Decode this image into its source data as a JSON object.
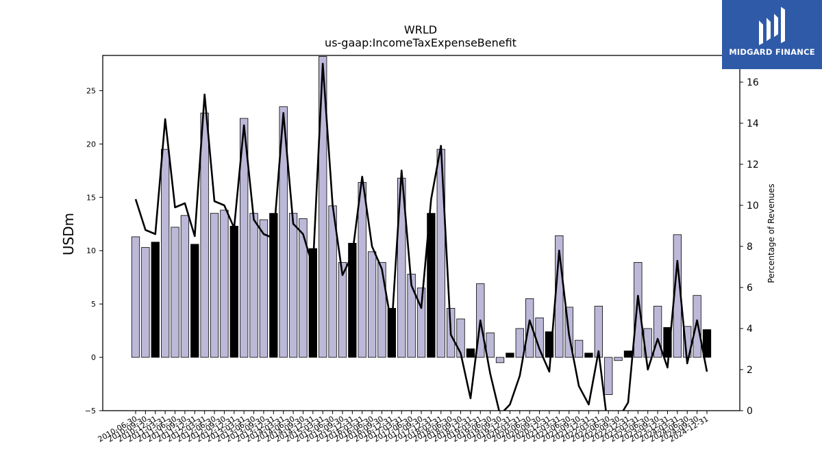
{
  "chart_data": {
    "type": "bar",
    "title": "WRLD",
    "subtitle": "us-gaap:IncomeTaxExpenseBenefit",
    "ylabel": "USDm",
    "ylabel_right": "Percentage of Revenues",
    "ylim": [
      -5,
      28.3
    ],
    "ylim_right": [
      0,
      17.3
    ],
    "yticks": [
      -5,
      0,
      5,
      10,
      15,
      20,
      25
    ],
    "yticks_right": [
      0,
      2,
      4,
      6,
      8,
      10,
      12,
      14,
      16
    ],
    "grid": false,
    "colors": {
      "bar_quarter": "#bcb8d8",
      "bar_year": "#000000",
      "line": "#000000"
    },
    "categories": [
      "2010-06-30",
      "2010-09-30",
      "2010-12-31",
      "2011-03-31",
      "2011-06-30",
      "2011-09-30",
      "2011-12-31",
      "2012-03-31",
      "2012-06-30",
      "2012-09-30",
      "2012-12-31",
      "2013-03-31",
      "2013-06-30",
      "2013-09-30",
      "2013-12-31",
      "2014-03-31",
      "2014-06-30",
      "2014-09-30",
      "2014-12-31",
      "2015-03-31",
      "2015-06-30",
      "2015-09-30",
      "2015-12-31",
      "2016-03-31",
      "2016-06-30",
      "2016-09-30",
      "2016-12-31",
      "2017-03-31",
      "2017-06-30",
      "2017-09-30",
      "2017-12-31",
      "2018-03-31",
      "2018-06-30",
      "2018-09-30",
      "2018-12-31",
      "2019-03-31",
      "2019-06-30",
      "2019-09-30",
      "2019-12-31",
      "2020-03-31",
      "2020-06-30",
      "2020-09-30",
      "2020-12-31",
      "2021-03-31",
      "2021-06-30",
      "2021-09-30",
      "2021-12-31",
      "2022-03-31",
      "2022-06-30",
      "2022-09-30",
      "2022-12-31",
      "2023-03-31",
      "2023-06-30",
      "2023-09-30",
      "2023-12-31",
      "2024-03-31",
      "2024-06-30",
      "2024-09-30",
      "2024-12-31"
    ],
    "series": [
      {
        "kind": "bar",
        "values": [
          11.3,
          10.3,
          10.8,
          19.5,
          12.2,
          13.3,
          10.6,
          22.9,
          13.5,
          13.8,
          12.3,
          22.4,
          13.5,
          12.9,
          13.5,
          23.5,
          13.5,
          13.0,
          10.2,
          28.2,
          14.2,
          8.9,
          10.7,
          16.4,
          9.9,
          8.9,
          4.6,
          16.8,
          7.8,
          6.5,
          13.5,
          19.5,
          4.6,
          3.6,
          0.8,
          6.9,
          2.3,
          -0.5,
          0.4,
          2.7,
          5.5,
          3.7,
          2.4,
          11.4,
          4.7,
          1.6,
          0.4,
          4.8,
          -3.5,
          -0.3,
          0.6,
          8.9,
          2.7,
          4.8,
          2.8,
          11.5,
          2.9,
          5.8,
          2.6
        ],
        "is_year_end": [
          false,
          false,
          true,
          false,
          false,
          false,
          true,
          false,
          false,
          false,
          true,
          false,
          false,
          false,
          true,
          false,
          false,
          false,
          true,
          false,
          false,
          false,
          true,
          false,
          false,
          false,
          true,
          false,
          false,
          false,
          true,
          false,
          false,
          false,
          true,
          false,
          false,
          false,
          true,
          false,
          false,
          false,
          true,
          false,
          false,
          false,
          true,
          false,
          false,
          false,
          true,
          false,
          false,
          false,
          true,
          false,
          false,
          false,
          true
        ]
      },
      {
        "kind": "line",
        "axis": "right",
        "values": [
          10.3,
          8.8,
          8.6,
          14.2,
          9.9,
          10.1,
          8.5,
          15.4,
          10.2,
          10.0,
          8.9,
          13.9,
          9.3,
          8.6,
          8.4,
          14.5,
          9.1,
          8.6,
          7.0,
          16.9,
          10.0,
          6.6,
          7.6,
          11.4,
          8.0,
          6.9,
          4.1,
          11.7,
          6.1,
          5.0,
          10.3,
          12.9,
          3.7,
          2.8,
          0.6,
          4.4,
          1.8,
          -0.2,
          0.3,
          1.7,
          4.4,
          3.0,
          1.9,
          7.8,
          3.7,
          1.2,
          0.3,
          2.9,
          -1.0,
          -0.4,
          0.4,
          5.6,
          2.0,
          3.5,
          2.1,
          7.3,
          2.3,
          4.4,
          1.9
        ]
      }
    ]
  },
  "logo": {
    "text": "MIDGARD FINANCE"
  }
}
